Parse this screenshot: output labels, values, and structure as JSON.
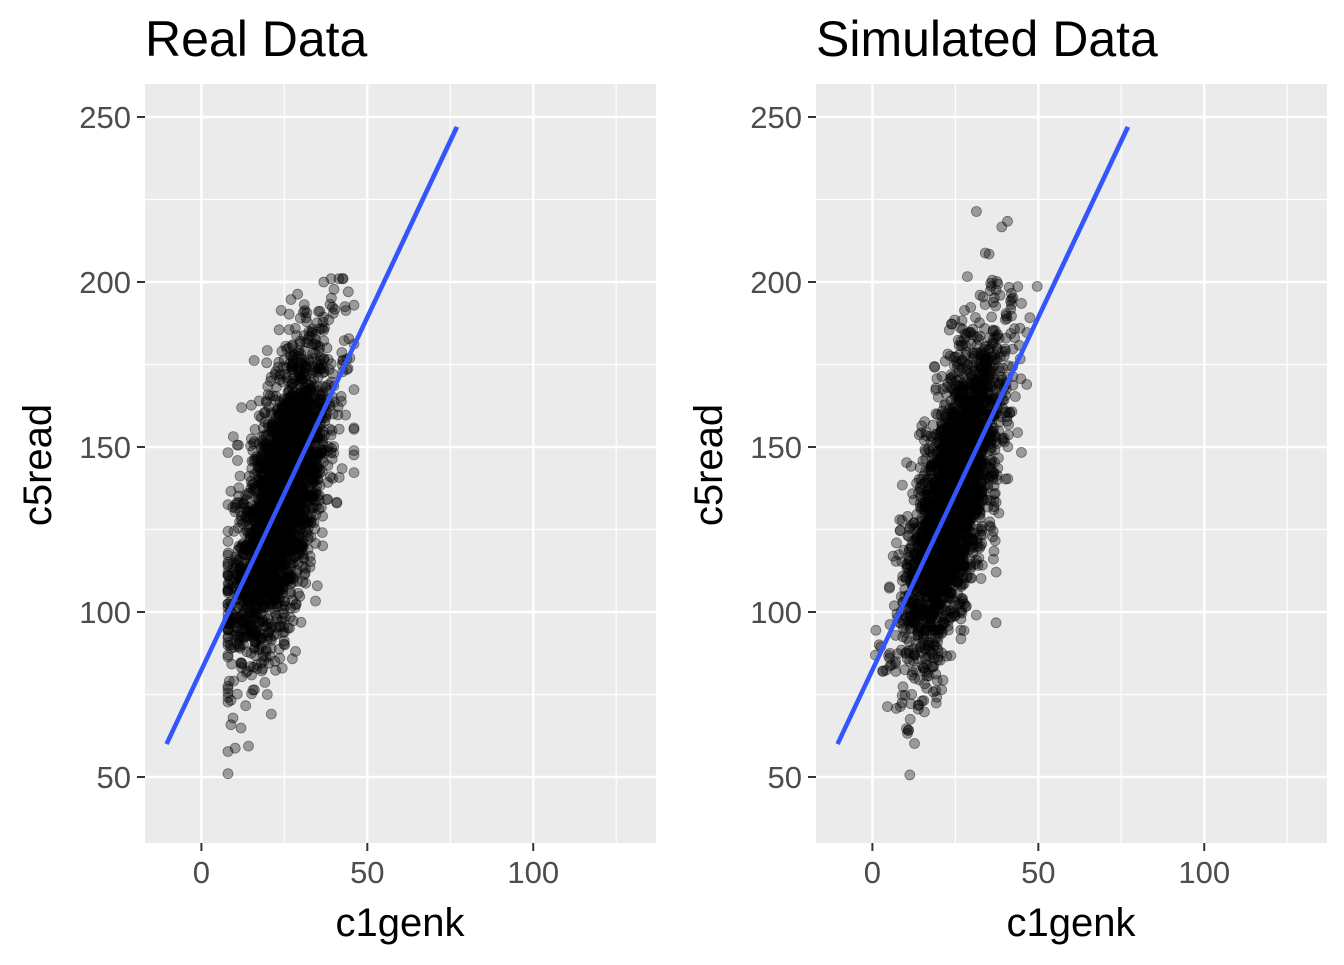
{
  "chart_data": [
    {
      "type": "scatter",
      "title": "Real Data",
      "xlabel": "c1genk",
      "ylabel": "c5read",
      "xlim": [
        -17,
        137
      ],
      "ylim": [
        30,
        260
      ],
      "xticks": [
        0,
        50,
        100
      ],
      "yticks": [
        50,
        100,
        150,
        200,
        250
      ],
      "grid": true,
      "point_color": "#000000",
      "point_opacity": 0.35,
      "cloud": {
        "n": 2600,
        "x_mean": 24,
        "x_sd": 7.5,
        "x_min": 8,
        "x_max": 46,
        "y_mean": 134,
        "y_sd": 24,
        "y_min": 51,
        "y_max": 201,
        "slope": 2.1
      },
      "fit_line": {
        "color": "#3355ff",
        "x": [
          -10.5,
          77
        ],
        "y": [
          60,
          247
        ]
      }
    },
    {
      "type": "scatter",
      "title": "Simulated Data",
      "xlabel": "c1genk",
      "ylabel": "c5read",
      "xlim": [
        -17,
        137
      ],
      "ylim": [
        30,
        260
      ],
      "xticks": [
        0,
        50,
        100
      ],
      "yticks": [
        50,
        100,
        150,
        200,
        250
      ],
      "grid": true,
      "point_color": "#000000",
      "point_opacity": 0.35,
      "cloud": {
        "n": 2600,
        "x_mean": 24,
        "x_sd": 7.5,
        "x_min": -5,
        "x_max": 50,
        "y_mean": 134,
        "y_sd": 25,
        "y_min": 44,
        "y_max": 232,
        "slope": 2.3
      },
      "fit_line": {
        "color": "#3355ff",
        "x": [
          -10.5,
          77
        ],
        "y": [
          60,
          247
        ]
      }
    }
  ]
}
